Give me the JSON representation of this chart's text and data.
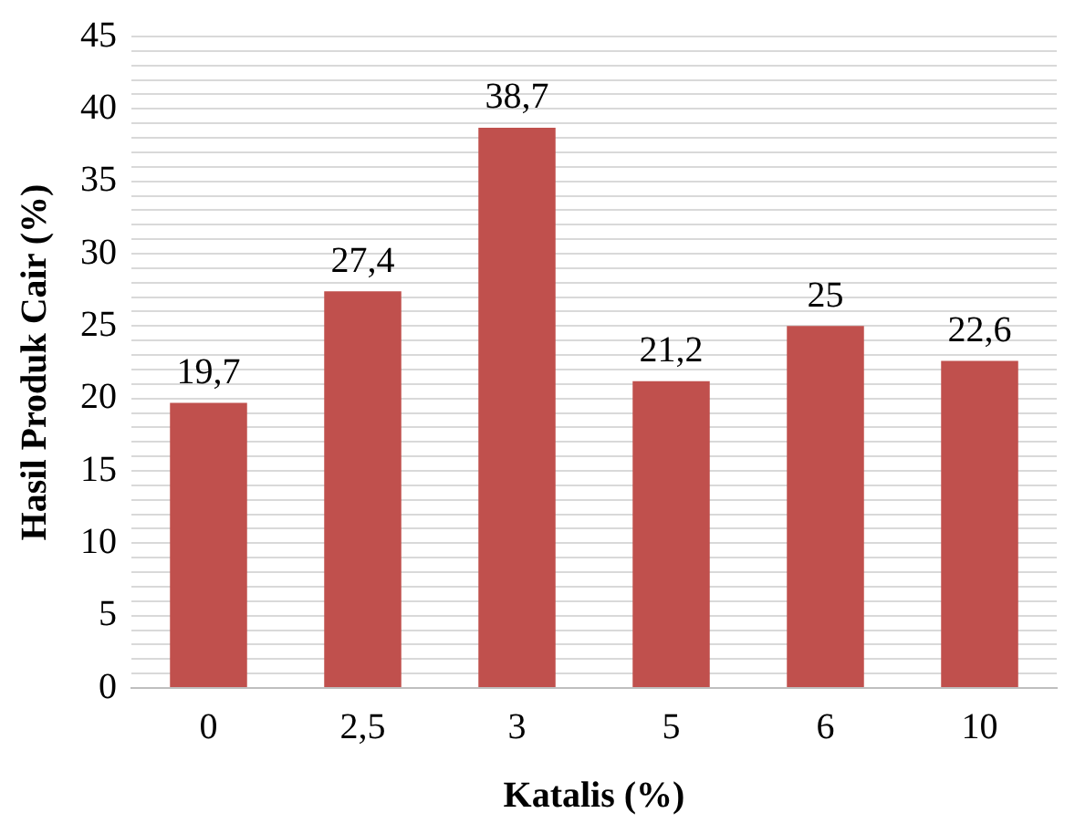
{
  "chart_data": {
    "type": "bar",
    "xlabel": "Katalis (%)",
    "ylabel": "Hasil Produk Cair (%)",
    "categories": [
      "0",
      "2,5",
      "3",
      "5",
      "6",
      "10"
    ],
    "values": [
      19.7,
      27.4,
      38.7,
      21.2,
      25,
      22.6
    ],
    "value_labels": [
      "19,7",
      "27,4",
      "38,7",
      "21,2",
      "25",
      "22,6"
    ],
    "color": "#c0504d",
    "ylim": [
      0,
      45
    ],
    "yticks": [
      0,
      {
        "value": 1,
        "label": null
      },
      {
        "value": 2,
        "label": null
      },
      {
        "value": 3,
        "label": null
      },
      {
        "value": 4,
        "label": null
      },
      5,
      {
        "value": 6,
        "label": null
      },
      {
        "value": 7,
        "label": null
      },
      {
        "value": 8,
        "label": null
      },
      {
        "value": 9,
        "label": null
      },
      10,
      {
        "value": 11,
        "label": null
      },
      {
        "value": 12,
        "label": null
      },
      {
        "value": 13,
        "label": null
      },
      {
        "value": 14,
        "label": null
      },
      15,
      {
        "value": 16,
        "label": null
      },
      {
        "value": 17,
        "label": null
      },
      {
        "value": 18,
        "label": null
      },
      {
        "value": 19,
        "label": null
      },
      20,
      {
        "value": 21,
        "label": null
      },
      {
        "value": 22,
        "label": null
      },
      {
        "value": 23,
        "label": null
      },
      {
        "value": 24,
        "label": null
      },
      25,
      {
        "value": 26,
        "label": null
      },
      {
        "value": 27,
        "label": null
      },
      {
        "value": 28,
        "label": null
      },
      {
        "value": 29,
        "label": null
      },
      30,
      {
        "value": 31,
        "label": null
      },
      {
        "value": 32,
        "label": null
      },
      {
        "value": 33,
        "label": null
      },
      {
        "value": 34,
        "label": null
      },
      35,
      {
        "value": 36,
        "label": null
      },
      {
        "value": 37,
        "label": null
      },
      {
        "value": 38,
        "label": null
      },
      {
        "value": 39,
        "label": null
      },
      40,
      {
        "value": 41,
        "label": null
      },
      {
        "value": 42,
        "label": null
      },
      {
        "value": 43,
        "label": null
      },
      {
        "value": 44,
        "label": null
      },
      45
    ],
    "grid": "y",
    "legend": false
  }
}
